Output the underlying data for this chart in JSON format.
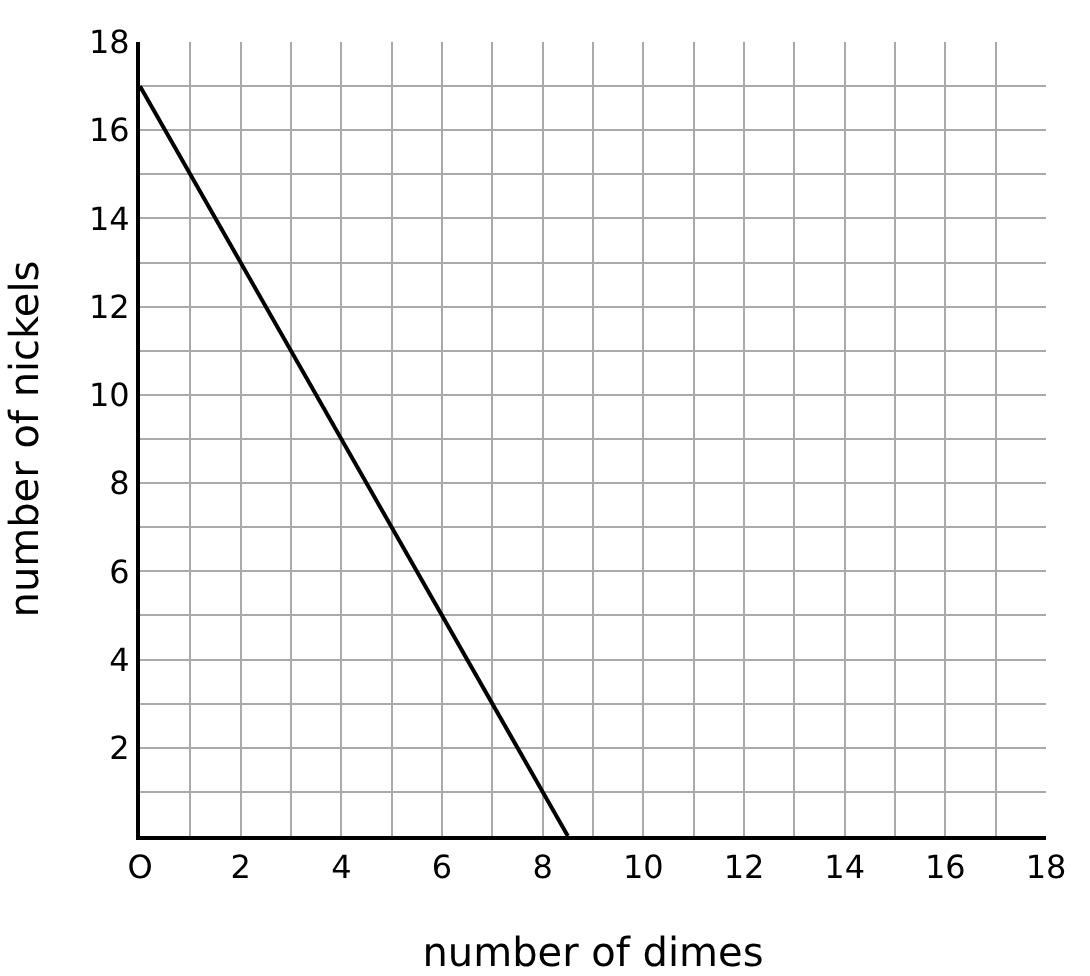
{
  "chart_data": {
    "type": "line",
    "xlabel": "number of dimes",
    "ylabel": "number of nickels",
    "x": [
      0,
      8.5
    ],
    "series": [
      {
        "color": "#000000",
        "values": [
          17,
          0
        ]
      }
    ],
    "xlim": [
      0,
      18
    ],
    "ylim": [
      0,
      18
    ],
    "xticks": [
      {
        "value": 0,
        "label": "O"
      },
      {
        "value": 1,
        "label": null
      },
      2,
      {
        "value": 3,
        "label": null
      },
      4,
      {
        "value": 5,
        "label": null
      },
      6,
      {
        "value": 7,
        "label": null
      },
      8,
      {
        "value": 9,
        "label": null
      },
      10,
      {
        "value": 11,
        "label": null
      },
      12,
      {
        "value": 13,
        "label": null
      },
      14,
      {
        "value": 15,
        "label": null
      },
      16,
      {
        "value": 17,
        "label": null
      },
      18
    ],
    "yticks": [
      {
        "value": 1,
        "label": null
      },
      2,
      {
        "value": 3,
        "label": null
      },
      4,
      {
        "value": 5,
        "label": null
      },
      6,
      {
        "value": 7,
        "label": null
      },
      8,
      {
        "value": 9,
        "label": null
      },
      10,
      {
        "value": 11,
        "label": null
      },
      12,
      {
        "value": 13,
        "label": null
      },
      14,
      {
        "value": 15,
        "label": null
      },
      16,
      {
        "value": 17,
        "label": null
      },
      18
    ],
    "grid": true,
    "marker": "none",
    "line_style": "solid"
  }
}
